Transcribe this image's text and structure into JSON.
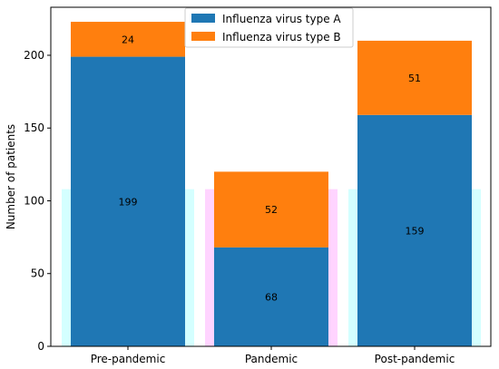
{
  "chart_data": {
    "type": "bar",
    "stacked": true,
    "categories": [
      "Pre-pandemic",
      "Pandemic",
      "Post-pandemic"
    ],
    "series": [
      {
        "name": "Influenza virus type A",
        "values": [
          199,
          68,
          159
        ],
        "color": "#1f77b4",
        "labels": [
          "199",
          "68",
          "159"
        ]
      },
      {
        "name": "Influenza virus type B",
        "values": [
          24,
          52,
          51
        ],
        "color": "#ff7f0e",
        "labels": [
          "24",
          "52",
          "51"
        ]
      }
    ],
    "ylabel": "Number of patients",
    "xlabel": "",
    "title": "",
    "ylim": [
      0,
      233
    ],
    "yticks": [
      0,
      50,
      100,
      150,
      200
    ],
    "grid": false,
    "legend": "top-center",
    "background_highlights": [
      {
        "category": "Pre-pandemic",
        "value": 108,
        "color": "#ccffff"
      },
      {
        "category": "Pandemic",
        "value": 108,
        "color": "#ffccff"
      },
      {
        "category": "Post-pandemic",
        "value": 108,
        "color": "#ccffff"
      }
    ]
  }
}
